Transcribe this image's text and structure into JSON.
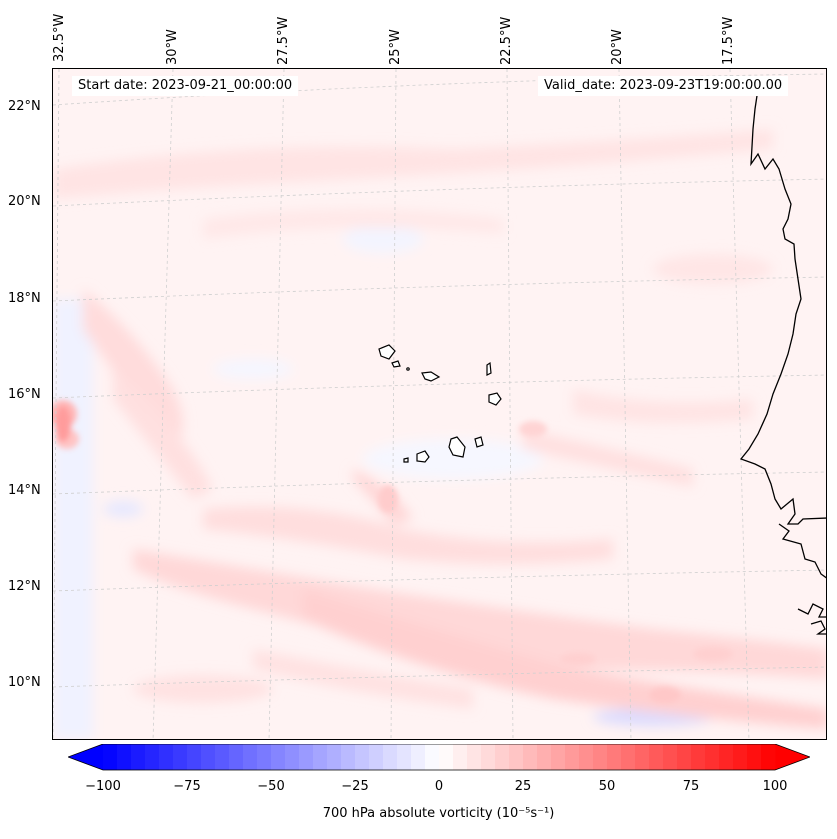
{
  "figure": {
    "start_date": "Start date: 2023-09-21_00:00:00",
    "valid_date": "Valid_date: 2023-09-23T19:00:00.00"
  },
  "longitude_labels": [
    "32.5°W",
    "30°W",
    "27.5°W",
    "25°W",
    "22.5°W",
    "20°W",
    "17.5°W"
  ],
  "latitude_labels": [
    "22°N",
    "20°N",
    "18°N",
    "16°N",
    "14°N",
    "12°N",
    "10°N"
  ],
  "colorbar": {
    "label": "700 hPa absolute vorticity (10⁻⁵s⁻¹)",
    "tick_labels": [
      "−100",
      "−75",
      "−50",
      "−25",
      "0",
      "25",
      "50",
      "75",
      "100"
    ],
    "min": -100,
    "max": 100,
    "colormap": "bwr",
    "low_color": "#0000ff",
    "mid_color": "#ffffff",
    "high_color": "#ff0000",
    "extend": "both"
  },
  "map": {
    "variable": "700 hPa absolute vorticity",
    "coastline_color": "#000000",
    "gridline_color": "#cccccc"
  }
}
